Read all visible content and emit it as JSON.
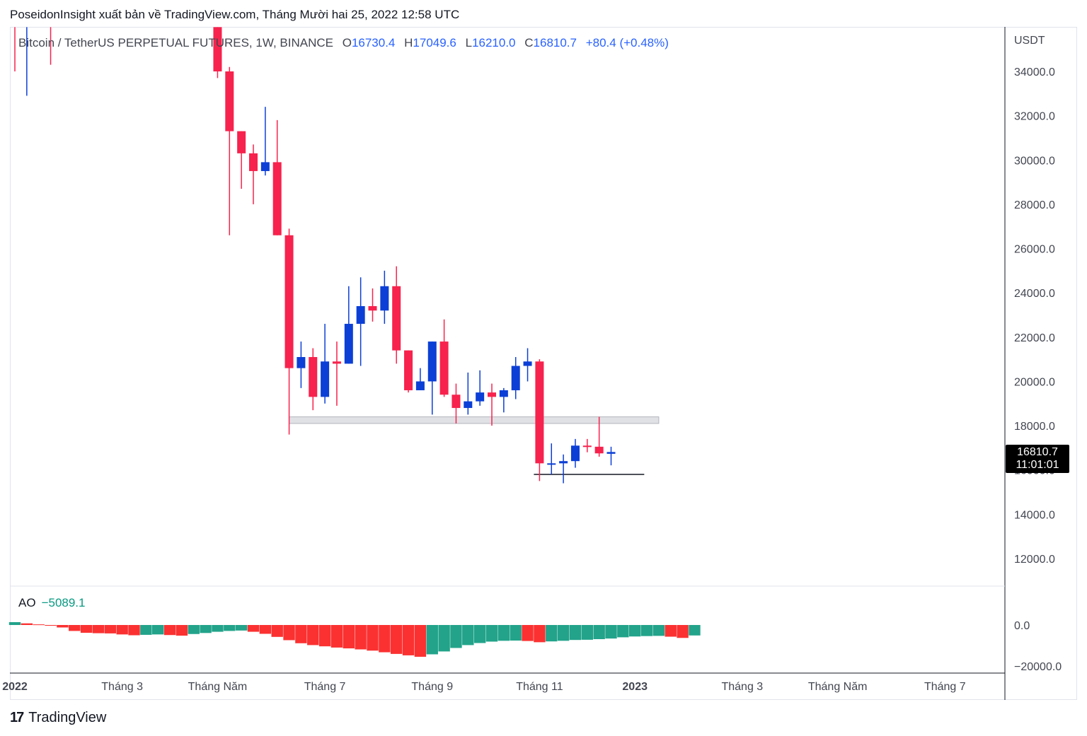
{
  "header": {
    "publisher_line": "PoseidonInsight xuất bản về TradingView.com, Tháng Mười hai 25, 2022 12:58 UTC"
  },
  "legend": {
    "symbol": "Bitcoin / TetherUS PERPETUAL FUTURES, 1W, BINANCE",
    "o_label": "O",
    "o_value": "16730.4",
    "h_label": "H",
    "h_value": "17049.6",
    "l_label": "L",
    "l_value": "16210.0",
    "c_label": "C",
    "c_value": "16810.7",
    "change": "+80.4 (+0.48%)"
  },
  "price_scale": {
    "unit": "USDT",
    "ticks": [
      "34000.0",
      "32000.0",
      "30000.0",
      "28000.0",
      "26000.0",
      "24000.0",
      "22000.0",
      "20000.0",
      "18000.0",
      "16000.0",
      "14000.0",
      "12000.0"
    ],
    "last_price": "16810.7",
    "countdown": "11:01:01"
  },
  "ao": {
    "label": "AO",
    "value": "−5089.1",
    "ticks": [
      "0.0",
      "−20000.0"
    ]
  },
  "time_axis": {
    "labels": [
      "2022",
      "Tháng 3",
      "Tháng Năm",
      "Tháng 7",
      "Tháng 9",
      "Tháng 11",
      "2023",
      "Tháng 3",
      "Tháng Năm",
      "Tháng 7"
    ]
  },
  "footer": {
    "brand": "TradingView",
    "logo_glyph": "17"
  },
  "colors": {
    "up": "#0b3fd6",
    "down": "#f7224d",
    "ao_up": "#22a38a",
    "ao_down": "#fb3131",
    "zone": "#dfe1e5"
  },
  "chart_data": {
    "type": "candlestick",
    "interval": "1W",
    "y_unit": "USDT",
    "ylim": [
      10800,
      36000
    ],
    "x_range": [
      "2022-01-03",
      "2023-08-21"
    ],
    "support_zone": {
      "from": 18100,
      "to": 18400,
      "start": "2022-06-13",
      "end": "2023-01-16"
    },
    "support_line": {
      "price": 15800,
      "start": "2022-11-07",
      "end": "2022-12-26"
    },
    "candles": [
      {
        "t": "2022-01-03",
        "o": null,
        "h": 36000,
        "l": 34000,
        "c": null
      },
      {
        "t": "2022-01-10",
        "o": null,
        "h": 36000,
        "l": 32900,
        "c": null
      },
      {
        "t": "2022-01-24",
        "o": null,
        "h": 36000,
        "l": 34300,
        "c": null
      },
      {
        "t": "2022-05-02",
        "o": 36000,
        "h": 36000,
        "l": 33700,
        "c": 34000
      },
      {
        "t": "2022-05-09",
        "o": 34000,
        "h": 34200,
        "l": 26600,
        "c": 31300
      },
      {
        "t": "2022-05-16",
        "o": 31300,
        "h": 31300,
        "l": 28700,
        "c": 30300
      },
      {
        "t": "2022-05-23",
        "o": 30300,
        "h": 30700,
        "l": 28000,
        "c": 29500
      },
      {
        "t": "2022-05-30",
        "o": 29500,
        "h": 32400,
        "l": 29300,
        "c": 29900
      },
      {
        "t": "2022-06-06",
        "o": 29900,
        "h": 31800,
        "l": 26600,
        "c": 26600
      },
      {
        "t": "2022-06-13",
        "o": 26600,
        "h": 26900,
        "l": 17600,
        "c": 20600
      },
      {
        "t": "2022-06-20",
        "o": 20600,
        "h": 21800,
        "l": 19700,
        "c": 21100
      },
      {
        "t": "2022-06-27",
        "o": 21100,
        "h": 21500,
        "l": 18700,
        "c": 19300
      },
      {
        "t": "2022-07-04",
        "o": 19300,
        "h": 22600,
        "l": 19000,
        "c": 20900
      },
      {
        "t": "2022-07-11",
        "o": 20900,
        "h": 21800,
        "l": 18900,
        "c": 20800
      },
      {
        "t": "2022-07-18",
        "o": 20800,
        "h": 24300,
        "l": 20800,
        "c": 22600
      },
      {
        "t": "2022-07-25",
        "o": 22600,
        "h": 24700,
        "l": 20700,
        "c": 23400
      },
      {
        "t": "2022-08-01",
        "o": 23400,
        "h": 24200,
        "l": 22700,
        "c": 23200
      },
      {
        "t": "2022-08-08",
        "o": 23200,
        "h": 25000,
        "l": 22600,
        "c": 24300
      },
      {
        "t": "2022-08-15",
        "o": 24300,
        "h": 25200,
        "l": 20800,
        "c": 21400
      },
      {
        "t": "2022-08-22",
        "o": 21400,
        "h": 21400,
        "l": 19500,
        "c": 19600
      },
      {
        "t": "2022-08-29",
        "o": 19600,
        "h": 20600,
        "l": 19600,
        "c": 20000
      },
      {
        "t": "2022-09-05",
        "o": 20000,
        "h": 21800,
        "l": 18500,
        "c": 21800
      },
      {
        "t": "2022-09-12",
        "o": 21800,
        "h": 22800,
        "l": 19300,
        "c": 19400
      },
      {
        "t": "2022-09-19",
        "o": 19400,
        "h": 19900,
        "l": 18100,
        "c": 18800
      },
      {
        "t": "2022-09-26",
        "o": 18800,
        "h": 20400,
        "l": 18500,
        "c": 19100
      },
      {
        "t": "2022-10-03",
        "o": 19100,
        "h": 20500,
        "l": 18900,
        "c": 19500
      },
      {
        "t": "2022-10-10",
        "o": 19500,
        "h": 19900,
        "l": 18000,
        "c": 19300
      },
      {
        "t": "2022-10-17",
        "o": 19300,
        "h": 19700,
        "l": 18600,
        "c": 19600
      },
      {
        "t": "2022-10-24",
        "o": 19600,
        "h": 21100,
        "l": 19200,
        "c": 20700
      },
      {
        "t": "2022-10-31",
        "o": 20700,
        "h": 21500,
        "l": 20000,
        "c": 20900
      },
      {
        "t": "2022-11-07",
        "o": 20900,
        "h": 21000,
        "l": 15500,
        "c": 16300
      },
      {
        "t": "2022-11-14",
        "o": 16300,
        "h": 17200,
        "l": 15800,
        "c": 16300
      },
      {
        "t": "2022-11-21",
        "o": 16300,
        "h": 16700,
        "l": 15400,
        "c": 16400
      },
      {
        "t": "2022-11-28",
        "o": 16400,
        "h": 17400,
        "l": 16100,
        "c": 17100
      },
      {
        "t": "2022-12-05",
        "o": 17100,
        "h": 17400,
        "l": 16800,
        "c": 17050
      },
      {
        "t": "2022-12-12",
        "o": 17050,
        "h": 18400,
        "l": 16600,
        "c": 16750
      },
      {
        "t": "2022-12-19",
        "o": 16730.4,
        "h": 17049.6,
        "l": 16210.0,
        "c": 16810.7
      }
    ],
    "ao_series": {
      "name": "AO",
      "ylim": [
        -22000,
        3000
      ],
      "start": "2022-01-03",
      "values": [
        1400,
        800,
        300,
        -200,
        -1200,
        -2900,
        -3800,
        -4000,
        -4100,
        -4600,
        -5000,
        -4800,
        -4600,
        -4900,
        -5200,
        -4400,
        -3900,
        -3300,
        -2900,
        -2700,
        -3300,
        -4300,
        -5800,
        -7400,
        -8900,
        -9800,
        -10400,
        -11000,
        -11400,
        -11900,
        -12500,
        -13300,
        -14100,
        -14800,
        -15500,
        -14300,
        -12900,
        -11200,
        -9800,
        -8800,
        -8100,
        -7700,
        -7600,
        -7800,
        -8400,
        -8000,
        -7700,
        -7300,
        -7200,
        -6900,
        -6600,
        -6000,
        -5600,
        -5400,
        -5300,
        -5700,
        -6300,
        -5100
      ]
    }
  }
}
